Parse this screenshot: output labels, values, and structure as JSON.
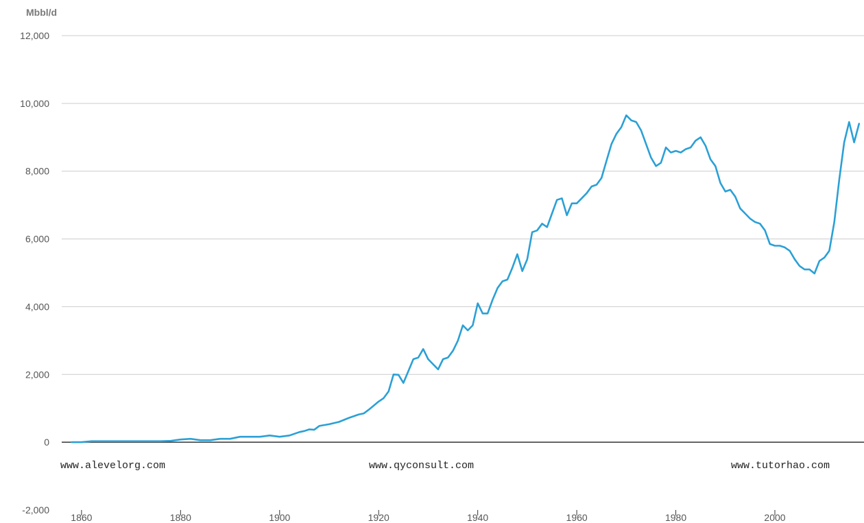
{
  "chart_data": {
    "type": "line",
    "ylabel": "Mbbl/d",
    "ylim": [
      -2000,
      12000
    ],
    "xlim": [
      1856,
      2018
    ],
    "yticks": [
      12000,
      10000,
      8000,
      6000,
      4000,
      2000,
      0,
      -2000
    ],
    "ytick_labels": [
      "12,000",
      "10,000",
      "8,000",
      "6,000",
      "4,000",
      "2,000",
      "0",
      "-2,000"
    ],
    "xticks": [
      1860,
      1880,
      1900,
      1920,
      1940,
      1960,
      1980,
      2000
    ],
    "xtick_labels": [
      "1860",
      "1880",
      "1900",
      "1920",
      "1940",
      "1960",
      "1980",
      "2000"
    ],
    "grid": true,
    "line_color": "#2aa0d6",
    "series": [
      {
        "x": [
          1858,
          1860,
          1862,
          1866,
          1870,
          1874,
          1876,
          1878,
          1880,
          1882,
          1884,
          1886,
          1888,
          1890,
          1892,
          1894,
          1896,
          1898,
          1900,
          1902,
          1904,
          1905,
          1906,
          1907,
          1908,
          1910,
          1912,
          1914,
          1916,
          1917,
          1918,
          1920,
          1921,
          1922,
          1923,
          1924,
          1925,
          1926,
          1927,
          1928,
          1929,
          1930,
          1931,
          1932,
          1933,
          1934,
          1935,
          1936,
          1937,
          1938,
          1939,
          1940,
          1941,
          1942,
          1943,
          1944,
          1945,
          1946,
          1947,
          1948,
          1949,
          1950,
          1951,
          1952,
          1953,
          1954,
          1955,
          1956,
          1957,
          1958,
          1959,
          1960,
          1961,
          1962,
          1963,
          1964,
          1965,
          1966,
          1967,
          1968,
          1969,
          1970,
          1971,
          1972,
          1973,
          1974,
          1975,
          1976,
          1977,
          1978,
          1979,
          1980,
          1981,
          1982,
          1983,
          1984,
          1985,
          1986,
          1987,
          1988,
          1989,
          1990,
          1991,
          1992,
          1993,
          1994,
          1995,
          1996,
          1997,
          1998,
          1999,
          2000,
          2001,
          2002,
          2003,
          2004,
          2005,
          2006,
          2007,
          2008,
          2009,
          2010,
          2011,
          2012,
          2013,
          2014,
          2015,
          2016,
          2017
        ],
        "values": [
          0,
          0,
          30,
          30,
          30,
          30,
          30,
          40,
          80,
          100,
          60,
          60,
          100,
          100,
          160,
          160,
          160,
          200,
          160,
          200,
          300,
          330,
          380,
          370,
          480,
          530,
          600,
          720,
          820,
          850,
          960,
          1200,
          1300,
          1500,
          2000,
          1990,
          1750,
          2100,
          2450,
          2500,
          2750,
          2450,
          2300,
          2150,
          2450,
          2500,
          2700,
          3000,
          3450,
          3300,
          3450,
          4100,
          3800,
          3800,
          4200,
          4550,
          4750,
          4800,
          5150,
          5550,
          5050,
          5400,
          6200,
          6250,
          6450,
          6350,
          6750,
          7150,
          7200,
          6700,
          7050,
          7050,
          7200,
          7350,
          7550,
          7600,
          7800,
          8300,
          8800,
          9100,
          9300,
          9650,
          9500,
          9450,
          9200,
          8800,
          8400,
          8150,
          8250,
          8700,
          8550,
          8600,
          8550,
          8650,
          8700,
          8900,
          9000,
          8750,
          8350,
          8150,
          7650,
          7400,
          7450,
          7250,
          6900,
          6750,
          6600,
          6500,
          6450,
          6250,
          5850,
          5800,
          5800,
          5750,
          5650,
          5400,
          5200,
          5100,
          5100,
          4980,
          5350,
          5450,
          5650,
          6500,
          7750,
          8850,
          9450,
          8850,
          9400
        ]
      }
    ]
  },
  "watermarks": [
    "www.alevelorg.com",
    "www.qyconsult.com",
    "www.tutorhao.com"
  ]
}
